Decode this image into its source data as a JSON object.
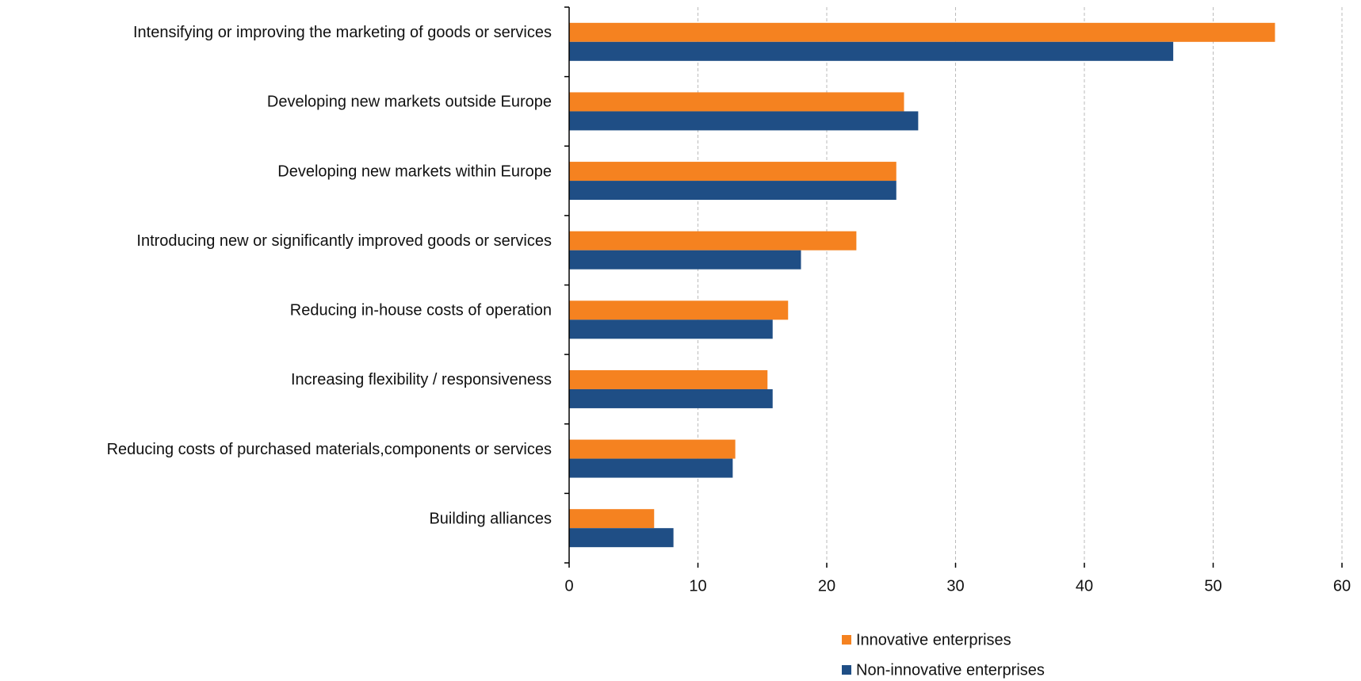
{
  "chart_data": {
    "type": "bar",
    "orientation": "horizontal",
    "categories": [
      "Intensifying or improving the marketing of goods or services",
      "Developing new markets outside Europe",
      "Developing new markets within Europe",
      "Introducing new or significantly improved goods or services",
      "Reducing in-house costs of operation",
      "Increasing flexibility / responsiveness",
      "Reducing costs of purchased materials,components or services",
      "Building alliances"
    ],
    "series": [
      {
        "name": "Innovative enterprises",
        "color": "#f58220",
        "values": [
          54.8,
          26.0,
          25.4,
          22.3,
          17.0,
          15.4,
          12.9,
          6.6
        ]
      },
      {
        "name": "Non-innovative enterprises",
        "color": "#1f4e85",
        "values": [
          46.9,
          27.1,
          25.4,
          18.0,
          15.8,
          15.8,
          12.7,
          8.1
        ]
      }
    ],
    "xlim": [
      0,
      60
    ],
    "xticks": [
      0,
      10,
      20,
      30,
      40,
      50,
      60
    ],
    "grid": true,
    "legend": "bottom"
  }
}
